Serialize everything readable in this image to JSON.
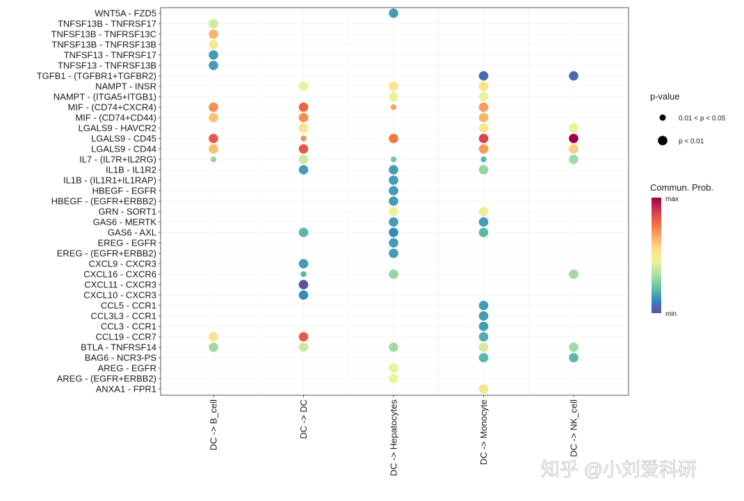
{
  "chart_data": {
    "type": "dotplot",
    "title": "",
    "xlabel": "",
    "ylabel": "",
    "categories_x": [
      "DC -> B_cell",
      "DC -> DC",
      "DC -> Hepatocytes",
      "DC -> Monocyte",
      "DC -> NK_cell"
    ],
    "categories_y": [
      "WNT5A - FZD5",
      "TNFSF13B - TNFRSF17",
      "TNFSF13B - TNFRSF13C",
      "TNFSF13B - TNFRSF13B",
      "TNFSF13 - TNFRSF17",
      "TNFSF13 - TNFRSF13B",
      "TGFB1 - (TGFBR1+TGFBR2)",
      "NAMPT - INSR",
      "NAMPT - (ITGA5+ITGB1)",
      "MIF - (CD74+CXCR4)",
      "MIF - (CD74+CD44)",
      "LGALS9 - HAVCR2",
      "LGALS9 - CD45",
      "LGALS9 - CD44",
      "IL7 - (IL7R+IL2RG)",
      "IL1B - IL1R2",
      "IL1B - (IL1R1+IL1RAP)",
      "HBEGF - EGFR",
      "HBEGF - (EGFR+ERBB2)",
      "GRN - SORT1",
      "GAS6 - MERTK",
      "GAS6 - AXL",
      "EREG - EGFR",
      "EREG - (EGFR+ERBB2)",
      "CXCL9 - CXCR3",
      "CXCL16 - CXCR6",
      "CXCL11 - CXCR3",
      "CXCL10 - CXCR3",
      "CCL5 - CCR1",
      "CCL3L3 - CCR1",
      "CCL3 - CCR1",
      "CCL19 - CCR7",
      "BTLA - TNFRSF14",
      "BAG6 - NCR3-PS",
      "AREG - EGFR",
      "AREG - (EGFR+ERBB2)",
      "ANXA1 - FPR1"
    ],
    "points": [
      {
        "y": "WNT5A - FZD5",
        "x": "DC -> Hepatocytes",
        "prob": 0.15,
        "p": "p < 0.01"
      },
      {
        "y": "TNFSF13B - TNFRSF17",
        "x": "DC -> B_cell",
        "prob": 0.4,
        "p": "p < 0.01"
      },
      {
        "y": "TNFSF13B - TNFRSF13C",
        "x": "DC -> B_cell",
        "prob": 0.65,
        "p": "p < 0.01"
      },
      {
        "y": "TNFSF13B - TNFRSF13B",
        "x": "DC -> B_cell",
        "prob": 0.5,
        "p": "p < 0.01"
      },
      {
        "y": "TNFSF13 - TNFRSF17",
        "x": "DC -> B_cell",
        "prob": 0.15,
        "p": "p < 0.01"
      },
      {
        "y": "TNFSF13 - TNFRSF13B",
        "x": "DC -> B_cell",
        "prob": 0.15,
        "p": "p < 0.01"
      },
      {
        "y": "TGFB1 - (TGFBR1+TGFBR2)",
        "x": "DC -> Monocyte",
        "prob": 0.05,
        "p": "p < 0.01"
      },
      {
        "y": "TGFB1 - (TGFBR1+TGFBR2)",
        "x": "DC -> NK_cell",
        "prob": 0.05,
        "p": "p < 0.01"
      },
      {
        "y": "NAMPT - INSR",
        "x": "DC -> DC",
        "prob": 0.45,
        "p": "p < 0.01"
      },
      {
        "y": "NAMPT - INSR",
        "x": "DC -> Hepatocytes",
        "prob": 0.52,
        "p": "p < 0.01"
      },
      {
        "y": "NAMPT - INSR",
        "x": "DC -> Monocyte",
        "prob": 0.55,
        "p": "p < 0.01"
      },
      {
        "y": "NAMPT - (ITGA5+ITGB1)",
        "x": "DC -> Hepatocytes",
        "prob": 0.45,
        "p": "p < 0.01"
      },
      {
        "y": "NAMPT - (ITGA5+ITGB1)",
        "x": "DC -> Monocyte",
        "prob": 0.45,
        "p": "p < 0.01"
      },
      {
        "y": "MIF - (CD74+CXCR4)",
        "x": "DC -> B_cell",
        "prob": 0.72,
        "p": "p < 0.01"
      },
      {
        "y": "MIF - (CD74+CXCR4)",
        "x": "DC -> DC",
        "prob": 0.8,
        "p": "p < 0.01"
      },
      {
        "y": "MIF - (CD74+CXCR4)",
        "x": "DC -> Hepatocytes",
        "prob": 0.68,
        "p": "0.01 < p < 0.05"
      },
      {
        "y": "MIF - (CD74+CXCR4)",
        "x": "DC -> Monocyte",
        "prob": 0.7,
        "p": "p < 0.01"
      },
      {
        "y": "MIF - (CD74+CD44)",
        "x": "DC -> B_cell",
        "prob": 0.62,
        "p": "p < 0.01"
      },
      {
        "y": "MIF - (CD74+CD44)",
        "x": "DC -> DC",
        "prob": 0.72,
        "p": "p < 0.01"
      },
      {
        "y": "MIF - (CD74+CD44)",
        "x": "DC -> Monocyte",
        "prob": 0.65,
        "p": "p < 0.01"
      },
      {
        "y": "LGALS9 - HAVCR2",
        "x": "DC -> DC",
        "prob": 0.52,
        "p": "p < 0.01"
      },
      {
        "y": "LGALS9 - HAVCR2",
        "x": "DC -> Monocyte",
        "prob": 0.52,
        "p": "p < 0.01"
      },
      {
        "y": "LGALS9 - HAVCR2",
        "x": "DC -> NK_cell",
        "prob": 0.45,
        "p": "p < 0.01"
      },
      {
        "y": "LGALS9 - CD45",
        "x": "DC -> B_cell",
        "prob": 0.82,
        "p": "p < 0.01"
      },
      {
        "y": "LGALS9 - CD45",
        "x": "DC -> DC",
        "prob": 0.72,
        "p": "0.01 < p < 0.05"
      },
      {
        "y": "LGALS9 - CD45",
        "x": "DC -> Hepatocytes",
        "prob": 0.76,
        "p": "p < 0.01"
      },
      {
        "y": "LGALS9 - CD45",
        "x": "DC -> Monocyte",
        "prob": 0.88,
        "p": "p < 0.01"
      },
      {
        "y": "LGALS9 - CD45",
        "x": "DC -> NK_cell",
        "prob": 1.0,
        "p": "p < 0.01"
      },
      {
        "y": "LGALS9 - CD44",
        "x": "DC -> B_cell",
        "prob": 0.63,
        "p": "p < 0.01"
      },
      {
        "y": "LGALS9 - CD44",
        "x": "DC -> DC",
        "prob": 0.83,
        "p": "p < 0.01"
      },
      {
        "y": "LGALS9 - CD44",
        "x": "DC -> Monocyte",
        "prob": 0.7,
        "p": "p < 0.01"
      },
      {
        "y": "LGALS9 - CD44",
        "x": "DC -> NK_cell",
        "prob": 0.6,
        "p": "p < 0.01"
      },
      {
        "y": "IL7 - (IL7R+IL2RG)",
        "x": "DC -> B_cell",
        "prob": 0.3,
        "p": "0.01 < p < 0.05"
      },
      {
        "y": "IL7 - (IL7R+IL2RG)",
        "x": "DC -> DC",
        "prob": 0.4,
        "p": "p < 0.01"
      },
      {
        "y": "IL7 - (IL7R+IL2RG)",
        "x": "DC -> Hepatocytes",
        "prob": 0.25,
        "p": "0.01 < p < 0.05"
      },
      {
        "y": "IL7 - (IL7R+IL2RG)",
        "x": "DC -> Monocyte",
        "prob": 0.2,
        "p": "0.01 < p < 0.05"
      },
      {
        "y": "IL7 - (IL7R+IL2RG)",
        "x": "DC -> NK_cell",
        "prob": 0.32,
        "p": "p < 0.01"
      },
      {
        "y": "IL1B - IL1R2",
        "x": "DC -> DC",
        "prob": 0.15,
        "p": "p < 0.01"
      },
      {
        "y": "IL1B - IL1R2",
        "x": "DC -> Hepatocytes",
        "prob": 0.15,
        "p": "p < 0.01"
      },
      {
        "y": "IL1B - IL1R2",
        "x": "DC -> Monocyte",
        "prob": 0.3,
        "p": "p < 0.01"
      },
      {
        "y": "IL1B - (IL1R1+IL1RAP)",
        "x": "DC -> Hepatocytes",
        "prob": 0.15,
        "p": "p < 0.01"
      },
      {
        "y": "HBEGF - EGFR",
        "x": "DC -> Hepatocytes",
        "prob": 0.15,
        "p": "p < 0.01"
      },
      {
        "y": "HBEGF - (EGFR+ERBB2)",
        "x": "DC -> Hepatocytes",
        "prob": 0.15,
        "p": "p < 0.01"
      },
      {
        "y": "GRN - SORT1",
        "x": "DC -> Hepatocytes",
        "prob": 0.45,
        "p": "p < 0.01"
      },
      {
        "y": "GRN - SORT1",
        "x": "DC -> Monocyte",
        "prob": 0.5,
        "p": "p < 0.01"
      },
      {
        "y": "GAS6 - MERTK",
        "x": "DC -> Hepatocytes",
        "prob": 0.15,
        "p": "p < 0.01"
      },
      {
        "y": "GAS6 - MERTK",
        "x": "DC -> Monocyte",
        "prob": 0.15,
        "p": "p < 0.01"
      },
      {
        "y": "GAS6 - AXL",
        "x": "DC -> DC",
        "prob": 0.2,
        "p": "p < 0.01"
      },
      {
        "y": "GAS6 - AXL",
        "x": "DC -> Hepatocytes",
        "prob": 0.12,
        "p": "p < 0.01"
      },
      {
        "y": "GAS6 - AXL",
        "x": "DC -> Monocyte",
        "prob": 0.2,
        "p": "p < 0.01"
      },
      {
        "y": "EREG - EGFR",
        "x": "DC -> Hepatocytes",
        "prob": 0.15,
        "p": "p < 0.01"
      },
      {
        "y": "EREG - (EGFR+ERBB2)",
        "x": "DC -> Hepatocytes",
        "prob": 0.15,
        "p": "p < 0.01"
      },
      {
        "y": "CXCL9 - CXCR3",
        "x": "DC -> DC",
        "prob": 0.15,
        "p": "p < 0.01"
      },
      {
        "y": "CXCL16 - CXCR6",
        "x": "DC -> DC",
        "prob": 0.2,
        "p": "0.01 < p < 0.05"
      },
      {
        "y": "CXCL16 - CXCR6",
        "x": "DC -> Hepatocytes",
        "prob": 0.3,
        "p": "p < 0.01"
      },
      {
        "y": "CXCL16 - CXCR6",
        "x": "DC -> NK_cell",
        "prob": 0.32,
        "p": "p < 0.01"
      },
      {
        "y": "CXCL11 - CXCR3",
        "x": "DC -> DC",
        "prob": 0.0,
        "p": "p < 0.01"
      },
      {
        "y": "CXCL10 - CXCR3",
        "x": "DC -> DC",
        "prob": 0.12,
        "p": "p < 0.01"
      },
      {
        "y": "CCL5 - CCR1",
        "x": "DC -> Monocyte",
        "prob": 0.15,
        "p": "p < 0.01"
      },
      {
        "y": "CCL3L3 - CCR1",
        "x": "DC -> Monocyte",
        "prob": 0.15,
        "p": "p < 0.01"
      },
      {
        "y": "CCL3 - CCR1",
        "x": "DC -> Monocyte",
        "prob": 0.15,
        "p": "p < 0.01"
      },
      {
        "y": "CCL19 - CCR7",
        "x": "DC -> B_cell",
        "prob": 0.55,
        "p": "p < 0.01"
      },
      {
        "y": "CCL19 - CCR7",
        "x": "DC -> DC",
        "prob": 0.82,
        "p": "p < 0.01"
      },
      {
        "y": "CCL19 - CCR7",
        "x": "DC -> Monocyte",
        "prob": 0.18,
        "p": "p < 0.01"
      },
      {
        "y": "BTLA - TNFRSF14",
        "x": "DC -> B_cell",
        "prob": 0.32,
        "p": "p < 0.01"
      },
      {
        "y": "BTLA - TNFRSF14",
        "x": "DC -> DC",
        "prob": 0.4,
        "p": "p < 0.01"
      },
      {
        "y": "BTLA - TNFRSF14",
        "x": "DC -> Hepatocytes",
        "prob": 0.32,
        "p": "p < 0.01"
      },
      {
        "y": "BTLA - TNFRSF14",
        "x": "DC -> Monocyte",
        "prob": 0.4,
        "p": "p < 0.01"
      },
      {
        "y": "BTLA - TNFRSF14",
        "x": "DC -> NK_cell",
        "prob": 0.32,
        "p": "p < 0.01"
      },
      {
        "y": "BAG6 - NCR3-PS",
        "x": "DC -> Monocyte",
        "prob": 0.2,
        "p": "p < 0.01"
      },
      {
        "y": "BAG6 - NCR3-PS",
        "x": "DC -> NK_cell",
        "prob": 0.2,
        "p": "p < 0.01"
      },
      {
        "y": "AREG - EGFR",
        "x": "DC -> Hepatocytes",
        "prob": 0.45,
        "p": "p < 0.01"
      },
      {
        "y": "AREG - (EGFR+ERBB2)",
        "x": "DC -> Hepatocytes",
        "prob": 0.45,
        "p": "p < 0.01"
      },
      {
        "y": "ANXA1 - FPR1",
        "x": "DC -> Monocyte",
        "prob": 0.52,
        "p": "p < 0.01"
      }
    ],
    "legend": {
      "size_title": "p-value",
      "size_levels": [
        "0.01 < p < 0.05",
        "p < 0.01"
      ],
      "color_title": "Commun. Prob.",
      "color_max_label": "max",
      "color_min_label": "min",
      "color_scale": [
        "#5E4FA2",
        "#3288BD",
        "#66C2A5",
        "#ABDDA4",
        "#E6F598",
        "#FEE08B",
        "#FDAE61",
        "#F46D43",
        "#D53E4F",
        "#9E0142"
      ]
    },
    "grid": true,
    "legend_position": "right"
  },
  "watermark": "知乎 @小刘爱科研"
}
